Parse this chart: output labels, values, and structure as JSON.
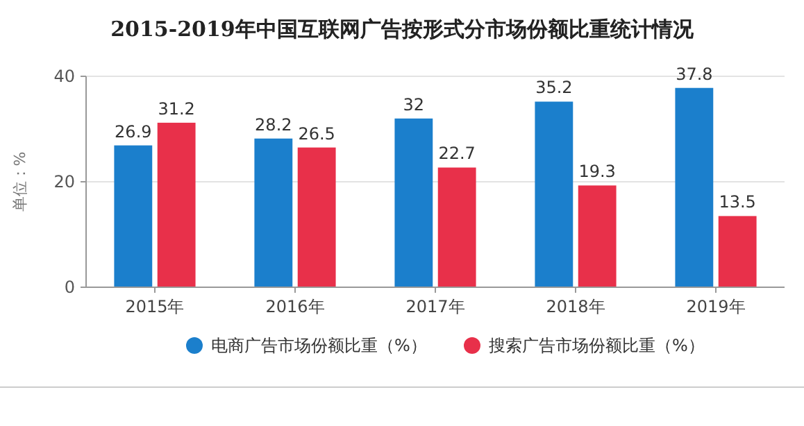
{
  "chart_data": {
    "type": "bar",
    "title": "2015-2019年中国互联网广告按形式分市场份额比重统计情况",
    "ylabel": "单位：%",
    "categories": [
      "2015年",
      "2016年",
      "2017年",
      "2018年",
      "2019年"
    ],
    "series": [
      {
        "name": "电商广告市场份额比重（%）",
        "color": "#1b7fcc",
        "values": [
          26.9,
          28.2,
          32,
          35.2,
          37.8
        ]
      },
      {
        "name": "搜索广告市场份额比重（%）",
        "color": "#e8304a",
        "values": [
          31.2,
          26.5,
          22.7,
          19.3,
          13.5
        ]
      }
    ],
    "ylim": [
      0,
      40
    ],
    "yticks": [
      0,
      20,
      40
    ],
    "grid": "y",
    "legend": "bottom",
    "data_labels": true
  }
}
